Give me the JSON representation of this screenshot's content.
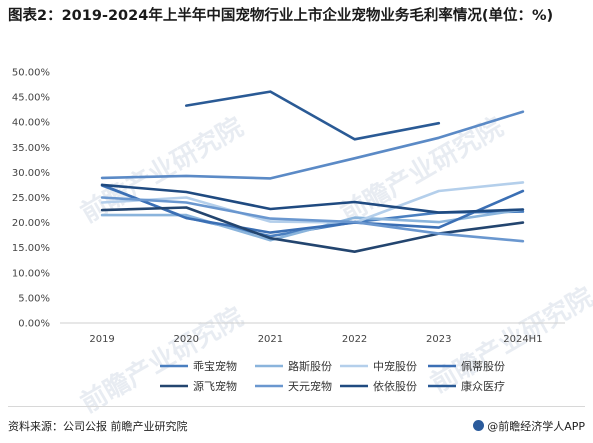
{
  "header": {
    "title": "图表2：2019-2024年上半年中国宠物行业上市企业宠物业务毛利率情况(单位：%)"
  },
  "footer": {
    "source": "资料来源：公司公报 前瞻产业研究院",
    "brand": "@前瞻经济学人APP"
  },
  "watermark": {
    "text": "前瞻产业研究院"
  },
  "chart_data": {
    "type": "line",
    "title": "",
    "xlabel": "",
    "ylabel": "",
    "categories": [
      "2019",
      "2020",
      "2021",
      "2022",
      "2023",
      "2024H1"
    ],
    "y_ticks": [
      "0.00%",
      "5.00%",
      "10.00%",
      "15.00%",
      "20.00%",
      "25.00%",
      "30.00%",
      "35.00%",
      "40.00%",
      "45.00%",
      "50.00%"
    ],
    "ylim": [
      0,
      50
    ],
    "grid": false,
    "legend_position": "bottom",
    "series": [
      {
        "name": "乖宝宠物",
        "color": "#4a7fc0",
        "values": [
          27.4,
          21.0,
          17.3,
          20.1,
          22.0,
          22.2
        ]
      },
      {
        "name": "路斯股份",
        "color": "#8ab4dc",
        "values": [
          21.5,
          21.5,
          16.5,
          21.0,
          20.1,
          22.6
        ]
      },
      {
        "name": "中宠股份",
        "color": "#b4cfeb",
        "values": [
          24.0,
          25.0,
          20.2,
          20.0,
          26.3,
          28.0
        ]
      },
      {
        "name": "佩蒂股份",
        "color": "#3b6fb4",
        "values": [
          27.5,
          20.9,
          18.0,
          20.0,
          19.0,
          26.3
        ]
      },
      {
        "name": "源飞宠物",
        "color": "#23456f",
        "values": [
          22.5,
          23.0,
          16.9,
          14.2,
          17.8,
          20.0
        ]
      },
      {
        "name": "天元宠物",
        "color": "#6a97cf",
        "values": [
          25.0,
          24.0,
          20.8,
          20.1,
          17.8,
          16.3
        ]
      },
      {
        "name": "依依股份",
        "color": "#1f4a80",
        "values": [
          27.5,
          26.1,
          22.7,
          24.1,
          22.0,
          22.6
        ]
      },
      {
        "name": "康众医疗",
        "color": "#2a5a95",
        "values": [
          null,
          43.3,
          46.1,
          36.6,
          39.8,
          null
        ]
      },
      {
        "name": "",
        "color": "#5b8ac6",
        "values": [
          28.9,
          29.3,
          28.8,
          32.8,
          36.9,
          42.1
        ]
      }
    ]
  }
}
